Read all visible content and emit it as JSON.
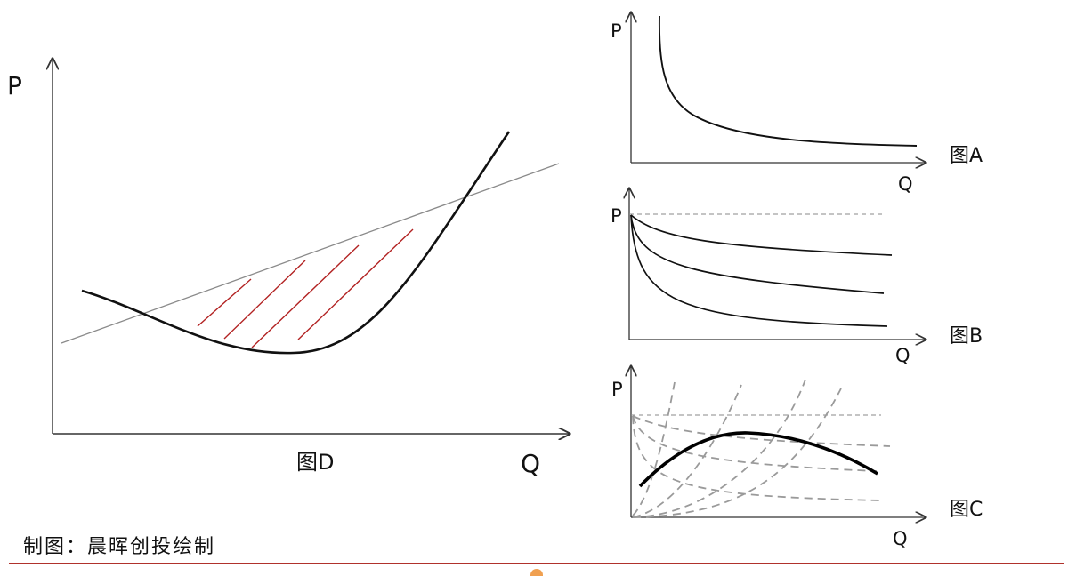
{
  "axis": {
    "p": "P",
    "q": "Q"
  },
  "figures": {
    "d": {
      "caption": "图D"
    },
    "a": {
      "caption": "图A"
    },
    "b": {
      "caption": "图B"
    },
    "c": {
      "caption": "图C"
    }
  },
  "source": "制图：晨晖创投绘制",
  "colors": {
    "curve": "#111111",
    "axis": "#333333",
    "hatch": "#b22222",
    "tangent": "#8a8a8a",
    "dashed": "#9a9a9a",
    "rule": "#b0322c"
  }
}
